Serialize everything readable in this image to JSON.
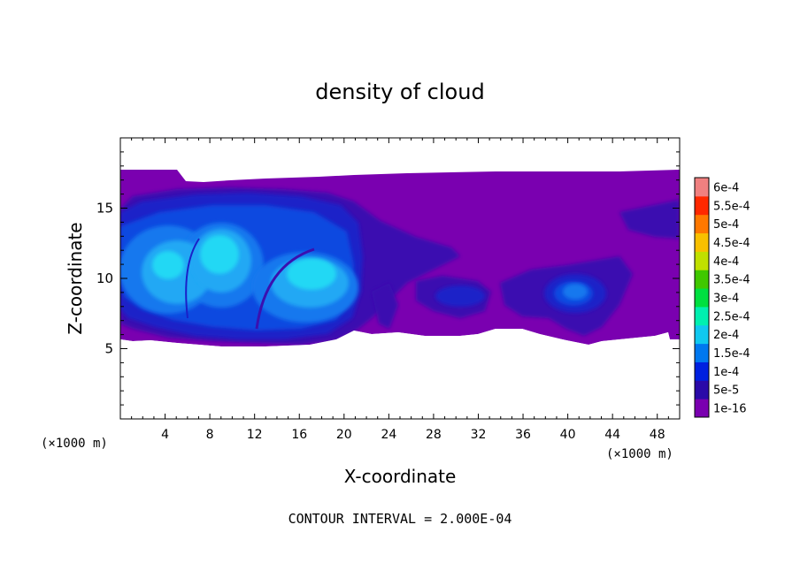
{
  "chart_data": {
    "type": "heatmap",
    "title": "density of cloud",
    "xlabel": "X-coordinate",
    "ylabel": "Z-coordinate",
    "x_unit": "(×1000 m)",
    "z_unit": "(×1000 m)",
    "xlim": [
      0,
      50
    ],
    "ylim": [
      0,
      20
    ],
    "x_ticks": [
      4,
      8,
      12,
      16,
      20,
      24,
      28,
      32,
      36,
      40,
      44,
      48
    ],
    "y_ticks": [
      5,
      10,
      15
    ],
    "footer": "CONTOUR INTERVAL = 2.000E-04",
    "colorbar": {
      "labels": [
        "1e-16",
        "5e-5",
        "1e-4",
        "1.5e-4",
        "2e-4",
        "2.5e-4",
        "3e-4",
        "3.5e-4",
        "4e-4",
        "4.5e-4",
        "5e-4",
        "5.5e-4",
        "6e-4"
      ],
      "colors": [
        "#7a00b0",
        "#2a0aa8",
        "#0020e0",
        "#0078f0",
        "#10c8f0",
        "#00f0b0",
        "#00e040",
        "#40c800",
        "#c0e000",
        "#f8c000",
        "#ff7800",
        "#ff2800",
        "#f08080"
      ]
    },
    "levels": {
      "background": "#ffffff",
      "cloud_base": "#7a00b0",
      "c1": "#3a10b0",
      "c2": "#1a20c8",
      "c3": "#1048e0",
      "c4": "#1478ee",
      "c5": "#20a8f4",
      "c6": "#20d8f4"
    }
  }
}
